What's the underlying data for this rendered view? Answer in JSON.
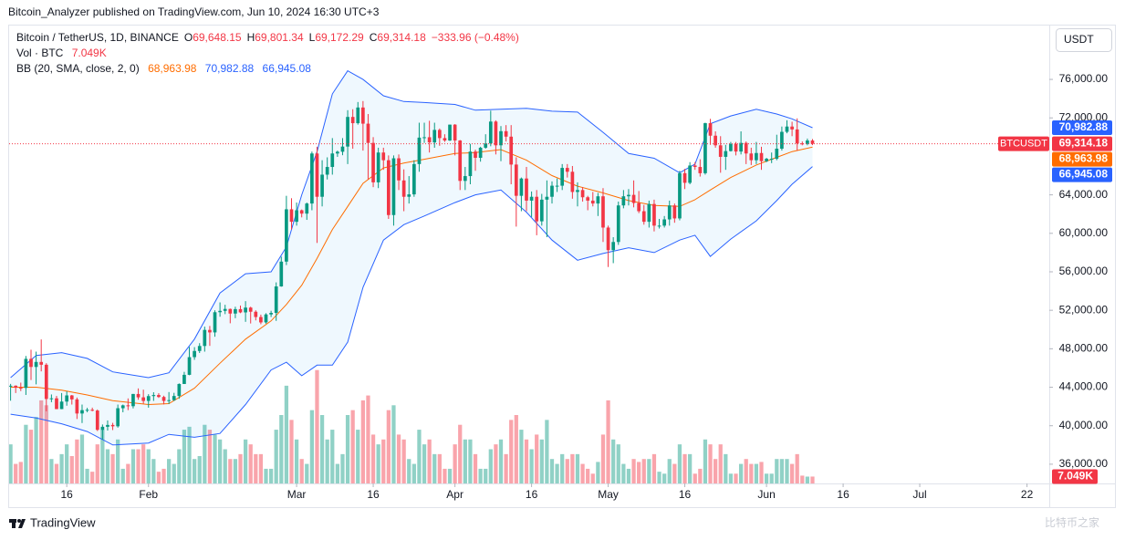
{
  "header": {
    "publisher": "Bitcoin_Analyzer published on TradingView.com, Jun 10, 2024 16:30 UTC+3"
  },
  "chart_data": {
    "type": "candlestick",
    "symbol": "Bitcoin / TetherUS, 1D, BINANCE",
    "ohlc_legend": [
      {
        "key": "O",
        "text": "69,648.15"
      },
      {
        "key": "H",
        "text": "69,801.34"
      },
      {
        "key": "L",
        "text": "69,172.29"
      },
      {
        "key": "C",
        "text": "69,314.18"
      }
    ],
    "change": "−333.96 (−0.48%)",
    "volume_title": "Vol · BTC",
    "volume_legend": "7.049K",
    "x": [
      "01-05",
      "01-06",
      "01-07",
      "01-08",
      "01-09",
      "01-10",
      "01-11",
      "01-12",
      "01-13",
      "01-14",
      "01-15",
      "01-16",
      "01-17",
      "01-18",
      "01-19",
      "01-20",
      "01-21",
      "01-22",
      "01-23",
      "01-24",
      "01-25",
      "01-26",
      "01-27",
      "01-28",
      "01-29",
      "01-30",
      "01-31",
      "02-01",
      "02-02",
      "02-03",
      "02-04",
      "02-05",
      "02-06",
      "02-07",
      "02-08",
      "02-09",
      "02-10",
      "02-11",
      "02-12",
      "02-13",
      "02-14",
      "02-15",
      "02-16",
      "02-17",
      "02-18",
      "02-19",
      "02-20",
      "02-21",
      "02-22",
      "02-23",
      "02-24",
      "02-25",
      "02-26",
      "02-27",
      "02-28",
      "02-29",
      "03-01",
      "03-02",
      "03-03",
      "03-04",
      "03-05",
      "03-06",
      "03-07",
      "03-08",
      "03-09",
      "03-10",
      "03-11",
      "03-12",
      "03-13",
      "03-14",
      "03-15",
      "03-16",
      "03-17",
      "03-18",
      "03-19",
      "03-20",
      "03-21",
      "03-22",
      "03-23",
      "03-24",
      "03-25",
      "03-26",
      "03-27",
      "03-28",
      "03-29",
      "03-30",
      "03-31",
      "04-01",
      "04-02",
      "04-03",
      "04-04",
      "04-05",
      "04-06",
      "04-07",
      "04-08",
      "04-09",
      "04-10",
      "04-11",
      "04-12",
      "04-13",
      "04-14",
      "04-15",
      "04-16",
      "04-17",
      "04-18",
      "04-19",
      "04-20",
      "04-21",
      "04-22",
      "04-23",
      "04-24",
      "04-25",
      "04-26",
      "04-27",
      "04-28",
      "04-29",
      "04-30",
      "05-01",
      "05-02",
      "05-03",
      "05-04",
      "05-05",
      "05-06",
      "05-07",
      "05-08",
      "05-09",
      "05-10",
      "05-11",
      "05-12",
      "05-13",
      "05-14",
      "05-15",
      "05-16",
      "05-17",
      "05-18",
      "05-19",
      "05-20",
      "05-21",
      "05-22",
      "05-23",
      "05-24",
      "05-25",
      "05-26",
      "05-27",
      "05-28",
      "05-29",
      "05-30",
      "05-31",
      "06-01",
      "06-02",
      "06-03",
      "06-04",
      "06-05",
      "06-06",
      "06-07",
      "06-08",
      "06-09",
      "06-10"
    ],
    "open": [
      44150,
      44160,
      43950,
      43930,
      46950,
      46110,
      46630,
      46340,
      42780,
      42850,
      41730,
      42510,
      43150,
      42740,
      41270,
      41620,
      41660,
      41580,
      39570,
      39890,
      40080,
      39940,
      41820,
      42120,
      42030,
      43300,
      42950,
      42580,
      43080,
      43190,
      42990,
      42580,
      42660,
      43090,
      44340,
      45290,
      47130,
      47770,
      48290,
      49960,
      49700,
      51800,
      51940,
      52140,
      51660,
      52120,
      51780,
      52280,
      51850,
      51300,
      50740,
      51570,
      51730,
      54480,
      57060,
      62500,
      61200,
      62400,
      62050,
      63100,
      68300,
      63800,
      66100,
      66900,
      68300,
      68480,
      69020,
      72100,
      71450,
      73080,
      71400,
      69400,
      65300,
      68400,
      67600,
      61900,
      67800,
      65500,
      63800,
      64050,
      67200,
      69950,
      69990,
      69450,
      70750,
      69900,
      69650,
      71300,
      69650,
      65450,
      65950,
      68500,
      67850,
      68900,
      69350,
      71620,
      69150,
      70620,
      70050,
      67150,
      63900,
      65700,
      63400,
      63800,
      61250,
      63500,
      63800,
      64950,
      64950,
      66800,
      66400,
      64300,
      64500,
      63750,
      63400,
      63100,
      63850,
      60600,
      58250,
      59100,
      62900,
      63850,
      64000,
      63150,
      62300,
      61200,
      63050,
      60800,
      60800,
      61450,
      62900,
      61550,
      66250,
      65250,
      67050,
      66900,
      66250,
      71450,
      70150,
      69150,
      67950,
      68550,
      69300,
      68500,
      69400,
      68300,
      67600,
      68350,
      67500,
      67750,
      67750,
      68800,
      70550,
      71100,
      70800,
      69350,
      69300,
      69648.15
    ],
    "high": [
      44350,
      44200,
      44480,
      47250,
      47900,
      47700,
      48970,
      46500,
      43250,
      43100,
      43400,
      43570,
      43200,
      42930,
      42200,
      41860,
      41880,
      41690,
      40130,
      40550,
      40300,
      42200,
      42200,
      42840,
      43310,
      43880,
      43750,
      43280,
      43480,
      43380,
      43120,
      43500,
      43420,
      44400,
      45600,
      48200,
      48170,
      48580,
      50300,
      50370,
      52000,
      52820,
      52570,
      52180,
      52370,
      52490,
      52950,
      52370,
      52000,
      51550,
      51700,
      51950,
      54900,
      57580,
      63900,
      63650,
      63200,
      62480,
      63200,
      68500,
      69000,
      67600,
      67900,
      69900,
      68600,
      69900,
      72800,
      72900,
      73650,
      73750,
      72400,
      70000,
      68900,
      68900,
      68100,
      68100,
      68200,
      66650,
      65950,
      67600,
      71500,
      71500,
      71700,
      71500,
      70900,
      70300,
      71300,
      71350,
      69700,
      66900,
      69300,
      68700,
      69000,
      70300,
      72750,
      71750,
      71150,
      71250,
      71250,
      67900,
      65800,
      66900,
      64350,
      64500,
      64100,
      65500,
      65400,
      65700,
      67200,
      67200,
      67000,
      65300,
      64800,
      63900,
      64300,
      64200,
      64700,
      60800,
      59600,
      63300,
      64500,
      64600,
      65500,
      64400,
      62950,
      63400,
      63500,
      61500,
      61800,
      63400,
      63100,
      66500,
      66700,
      67400,
      67400,
      67700,
      71500,
      71900,
      70600,
      70100,
      69200,
      69500,
      69500,
      70600,
      69550,
      68900,
      69500,
      69000,
      67850,
      68400,
      70250,
      71100,
      71750,
      71600,
      71950,
      69550,
      69850,
      69801.34
    ],
    "low": [
      42600,
      43400,
      43600,
      43200,
      44750,
      44300,
      45650,
      41500,
      42450,
      41720,
      41720,
      42080,
      42200,
      40700,
      40280,
      41400,
      41500,
      39450,
      38550,
      39500,
      39550,
      39800,
      41400,
      41620,
      41800,
      42700,
      42300,
      41880,
      42580,
      42890,
      42220,
      42260,
      42570,
      42800,
      44340,
      45250,
      46850,
      47560,
      47700,
      48300,
      49250,
      51330,
      51600,
      50650,
      51180,
      51700,
      50800,
      50630,
      50950,
      50550,
      50600,
      51300,
      50900,
      54450,
      56700,
      60400,
      60800,
      61660,
      61400,
      62400,
      59000,
      62800,
      65600,
      66100,
      67950,
      68120,
      67200,
      68800,
      71300,
      68600,
      65600,
      64800,
      64700,
      66600,
      61500,
      60800,
      64500,
      62300,
      63100,
      63800,
      66400,
      69400,
      68400,
      68900,
      69100,
      69500,
      69600,
      68100,
      64500,
      64500,
      65100,
      66500,
      67450,
      68800,
      69050,
      68200,
      67500,
      69550,
      65100,
      60700,
      62300,
      62300,
      61700,
      59800,
      60800,
      59600,
      63100,
      64300,
      64500,
      65800,
      63600,
      62800,
      63300,
      62400,
      62800,
      61800,
      59100,
      56500,
      56900,
      58800,
      62600,
      62900,
      62700,
      62100,
      60900,
      60600,
      60200,
      60500,
      60600,
      60800,
      61100,
      61350,
      64600,
      65100,
      66600,
      65900,
      66100,
      69200,
      68900,
      66300,
      66600,
      68500,
      68100,
      68200,
      67200,
      67100,
      67200,
      66600,
      67400,
      67300,
      67600,
      68600,
      70400,
      70100,
      68600,
      69150,
      69150,
      69172.29
    ],
    "close": [
      44160,
      43950,
      43930,
      46950,
      46110,
      46630,
      46340,
      42780,
      42850,
      41730,
      42510,
      43150,
      42740,
      41270,
      41620,
      41660,
      41580,
      39570,
      39890,
      40080,
      39940,
      41820,
      42120,
      42030,
      43300,
      42950,
      42580,
      43080,
      43190,
      42990,
      42580,
      42660,
      43090,
      44340,
      45290,
      47130,
      47770,
      48290,
      49960,
      49700,
      51800,
      51940,
      52140,
      51660,
      52120,
      51780,
      52280,
      51850,
      51300,
      50740,
      51570,
      51730,
      54480,
      57060,
      62500,
      61200,
      62400,
      62050,
      63100,
      68300,
      63800,
      66100,
      66900,
      68300,
      68480,
      69020,
      72100,
      71450,
      73080,
      71400,
      69400,
      65300,
      68400,
      67600,
      61900,
      67800,
      65500,
      63800,
      64050,
      67200,
      69950,
      69990,
      69450,
      70750,
      69900,
      69650,
      71300,
      69650,
      65450,
      65950,
      68500,
      67850,
      68900,
      69350,
      71620,
      69150,
      70620,
      70050,
      67150,
      63900,
      65700,
      63400,
      63800,
      61250,
      63500,
      63800,
      64950,
      64950,
      66800,
      66400,
      64300,
      64500,
      63750,
      63400,
      63100,
      63850,
      60600,
      58250,
      59100,
      62900,
      63850,
      64000,
      63150,
      62300,
      61200,
      63050,
      60800,
      60800,
      61450,
      62900,
      61550,
      66250,
      65250,
      67050,
      66900,
      66250,
      71450,
      70150,
      69150,
      67950,
      68550,
      69300,
      68500,
      69400,
      68300,
      67600,
      68350,
      67500,
      67750,
      67750,
      68800,
      70550,
      71100,
      70800,
      69350,
      69300,
      69650,
      69314.18
    ],
    "volume": [
      40000,
      20000,
      22000,
      60000,
      55000,
      68000,
      85000,
      80000,
      25000,
      20000,
      30000,
      40000,
      28000,
      45000,
      50000,
      15000,
      12000,
      40000,
      55000,
      35000,
      30000,
      45000,
      15000,
      20000,
      35000,
      35000,
      40000,
      35000,
      25000,
      12000,
      15000,
      25000,
      20000,
      35000,
      55000,
      58000,
      25000,
      28000,
      60000,
      55000,
      50000,
      45000,
      35000,
      25000,
      25000,
      30000,
      45000,
      40000,
      30000,
      30000,
      15000,
      15000,
      55000,
      70000,
      100000,
      65000,
      45000,
      25000,
      20000,
      75000,
      116000,
      70000,
      45000,
      55000,
      20000,
      30000,
      70000,
      75000,
      55000,
      85000,
      90000,
      50000,
      40000,
      45000,
      75000,
      80000,
      50000,
      45000,
      25000,
      20000,
      55000,
      40000,
      45000,
      30000,
      30000,
      15000,
      15000,
      40000,
      60000,
      45000,
      45000,
      30000,
      15000,
      15000,
      35000,
      40000,
      45000,
      30000,
      65000,
      70000,
      55000,
      45000,
      35000,
      50000,
      45000,
      65000,
      25000,
      20000,
      30000,
      25000,
      30000,
      30000,
      20000,
      15000,
      10000,
      22000,
      50000,
      85000,
      45000,
      40000,
      20000,
      15000,
      25000,
      22000,
      25000,
      25000,
      30000,
      12000,
      10000,
      25000,
      20000,
      40000,
      30000,
      30000,
      10000,
      15000,
      45000,
      40000,
      25000,
      40000,
      30000,
      10000,
      10000,
      20000,
      25000,
      20000,
      20000,
      22000,
      10000,
      10000,
      25000,
      25000,
      25000,
      20000,
      30000,
      8000,
      7000,
      7049
    ],
    "up_color": "#089981",
    "down_color": "#f23645",
    "volume_up_color": "rgba(8,153,129,0.45)",
    "volume_down_color": "rgba(242,54,69,0.45)",
    "volume_lim": [
      0,
      140000
    ],
    "bollinger": {
      "name": "BB (20, SMA, close, 2, 0)",
      "legend": [
        "68,963.98",
        "70,982.88",
        "66,945.08"
      ],
      "x": [
        "01-05",
        "01-10",
        "01-15",
        "01-20",
        "01-25",
        "02-01",
        "02-05",
        "02-10",
        "02-15",
        "02-20",
        "02-25",
        "02-28",
        "03-02",
        "03-05",
        "03-08",
        "03-11",
        "03-14",
        "03-18",
        "03-22",
        "03-26",
        "04-01",
        "04-05",
        "04-10",
        "04-15",
        "04-20",
        "04-25",
        "04-30",
        "05-05",
        "05-10",
        "05-15",
        "05-18",
        "05-21",
        "05-25",
        "05-30",
        "06-03",
        "06-06",
        "06-10"
      ],
      "upper": [
        45000,
        47300,
        47600,
        47000,
        45600,
        45000,
        45500,
        49000,
        53800,
        55800,
        56000,
        58600,
        64000,
        68500,
        74500,
        76900,
        76000,
        74300,
        73700,
        73600,
        73400,
        72800,
        72900,
        73000,
        72700,
        72600,
        70500,
        68300,
        67800,
        66300,
        67200,
        71400,
        72200,
        72900,
        72400,
        71900,
        70982.88
      ],
      "basis": [
        44000,
        44000,
        43700,
        43200,
        42600,
        42200,
        42300,
        43900,
        46500,
        49000,
        50900,
        52600,
        54600,
        57400,
        60400,
        62800,
        65200,
        66800,
        67300,
        67700,
        68300,
        68400,
        68700,
        67600,
        66000,
        64900,
        64200,
        63400,
        62900,
        62800,
        63500,
        64500,
        65800,
        67100,
        67900,
        68500,
        68963.98
      ],
      "lower": [
        41200,
        40800,
        40200,
        39400,
        38000,
        38200,
        39100,
        38800,
        39200,
        42200,
        45800,
        46600,
        45200,
        46300,
        46300,
        48700,
        54400,
        59300,
        60900,
        61800,
        63200,
        64000,
        64500,
        62200,
        59300,
        57200,
        57900,
        58500,
        58000,
        59300,
        59800,
        57600,
        59400,
        61300,
        63400,
        65100,
        66945.08
      ],
      "basis_color": "#ff6d00",
      "band_color": "#2962ff",
      "fill": "rgba(33,150,243,0.07)"
    },
    "ylim": [
      34000,
      81600
    ],
    "yticks": [
      {
        "value": 36000,
        "label": "36,000.00"
      },
      {
        "value": 40000,
        "label": "40,000.00"
      },
      {
        "value": 44000,
        "label": "44,000.00"
      },
      {
        "value": 48000,
        "label": "48,000.00"
      },
      {
        "value": 52000,
        "label": "52,000.00"
      },
      {
        "value": 56000,
        "label": "56,000.00"
      },
      {
        "value": 60000,
        "label": "60,000.00"
      },
      {
        "value": 64000,
        "label": "64,000.00"
      },
      {
        "value": 72000,
        "label": "72,000.00"
      },
      {
        "value": 76000,
        "label": "76,000.00"
      }
    ],
    "xlim": [
      "01-04",
      "07-26"
    ],
    "xticks": [
      {
        "value": "01-16",
        "label": "16"
      },
      {
        "value": "02-01",
        "label": "Feb"
      },
      {
        "value": "03-01",
        "label": "Mar"
      },
      {
        "value": "03-16",
        "label": "16"
      },
      {
        "value": "04-01",
        "label": "Apr"
      },
      {
        "value": "04-16",
        "label": "16"
      },
      {
        "value": "05-01",
        "label": "May"
      },
      {
        "value": "05-16",
        "label": "16"
      },
      {
        "value": "06-01",
        "label": "Jun"
      },
      {
        "value": "06-16",
        "label": "16"
      },
      {
        "value": "07-01",
        "label": "Jul"
      },
      {
        "value": "07-22",
        "label": "22"
      }
    ],
    "currency": "USDT",
    "price_tags": [
      {
        "value": 70982.88,
        "label": "70,982.88",
        "color": "#2962ff"
      },
      {
        "value": 69314.18,
        "label": "69,314.18",
        "color": "#f23645",
        "name": "BTCUSDT"
      },
      {
        "value": 68963.98,
        "label": "68,963.98",
        "color": "#ff6d00"
      },
      {
        "value": 66945.08,
        "label": "66,945.08",
        "color": "#2962ff"
      }
    ],
    "volume_tag": {
      "value": 7049,
      "label": "7.049K",
      "color": "#f23645"
    }
  },
  "footer": {
    "brand": "TradingView",
    "watermark": "比特币之家"
  }
}
